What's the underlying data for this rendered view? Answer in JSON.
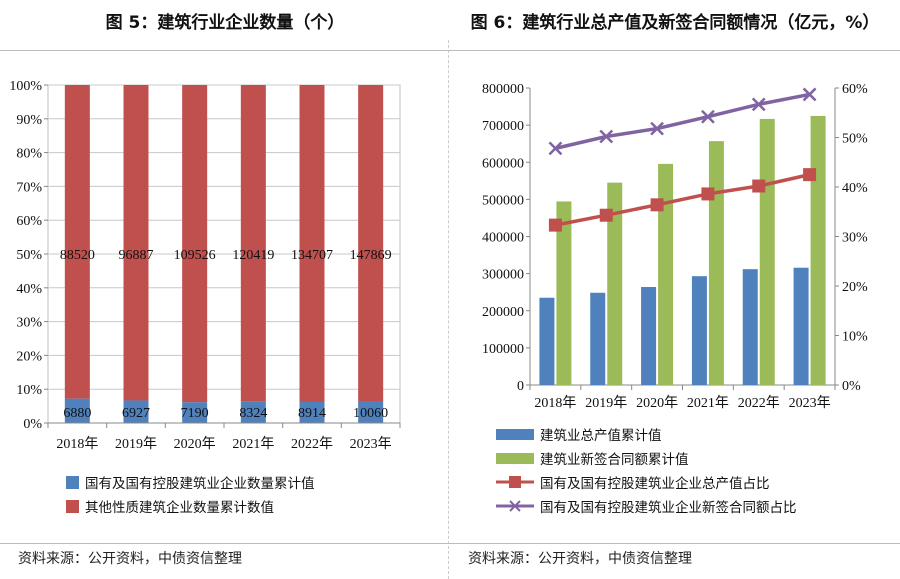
{
  "fig5": {
    "title": "图 5：建筑行业企业数量（个）",
    "source": "资料来源：公开资料，中债资信整理",
    "legend": [
      "国有及国有控股建筑业企业数量累计值",
      "其他性质建筑企业数量累计数值"
    ],
    "colors": {
      "state": "#4f81bd",
      "other": "#c0504d"
    }
  },
  "fig6": {
    "title": "图 6：建筑行业总产值及新签合同额情况（亿元，%）",
    "source": "资料来源：公开资料，中债资信整理",
    "legend": [
      "建筑业总产值累计值",
      "建筑业新签合同额累计值",
      "国有及国有控股建筑业企业总产值占比",
      "国有及国有控股建筑业企业新签合同额占比"
    ],
    "colors": {
      "output": "#4f81bd",
      "contracts": "#9bbb59",
      "output_share": "#c0504d",
      "contract_share": "#8064a2"
    }
  },
  "chart_data": [
    {
      "type": "bar",
      "stacked": "percent",
      "title": "图 5：建筑行业企业数量（个）",
      "categories": [
        "2018年",
        "2019年",
        "2020年",
        "2021年",
        "2022年",
        "2023年"
      ],
      "series": [
        {
          "name": "国有及国有控股建筑业企业数量累计值",
          "values": [
            6880,
            6927,
            7190,
            8324,
            8914,
            10060
          ],
          "labels": [
            "6880",
            "6927",
            "7190",
            "8324",
            "8914",
            "10060"
          ]
        },
        {
          "name": "其他性质建筑企业数量累计数值",
          "values": [
            88520,
            96887,
            109526,
            120419,
            134707,
            147869
          ],
          "labels": [
            "88520",
            "96887",
            "109526",
            "120419",
            "134707",
            "147869"
          ]
        }
      ],
      "yticks": [
        "0%",
        "10%",
        "20%",
        "30%",
        "40%",
        "50%",
        "60%",
        "70%",
        "80%",
        "90%",
        "100%"
      ],
      "ylim": [
        0,
        100
      ],
      "grid": true
    },
    {
      "type": "bar+line",
      "title": "图 6：建筑行业总产值及新签合同额情况（亿元，%）",
      "categories": [
        "2018年",
        "2019年",
        "2020年",
        "2021年",
        "2022年",
        "2023年"
      ],
      "bar_series": [
        {
          "name": "建筑业总产值累计值",
          "values": [
            235086,
            248446,
            263947,
            293079,
            311980,
            315912
          ]
        },
        {
          "name": "建筑业新签合同额累计值",
          "values": [
            494409,
            545039,
            595576,
            656887,
            716721,
            724731
          ]
        }
      ],
      "line_series": [
        {
          "name": "国有及国有控股建筑业企业总产值占比",
          "marker": "square",
          "values": [
            32.3,
            34.3,
            36.4,
            38.6,
            40.2,
            42.5
          ]
        },
        {
          "name": "国有及国有控股建筑业企业新签合同额占比",
          "marker": "x",
          "values": [
            47.8,
            50.2,
            51.8,
            54.2,
            56.7,
            58.7
          ]
        }
      ],
      "yleft_ticks": [
        "0",
        "100000",
        "200000",
        "300000",
        "400000",
        "500000",
        "600000",
        "700000",
        "800000"
      ],
      "yleft_lim": [
        0,
        800000
      ],
      "yright_ticks": [
        "0%",
        "10%",
        "20%",
        "30%",
        "40%",
        "50%",
        "60%"
      ],
      "yright_lim": [
        0,
        60
      ]
    }
  ]
}
